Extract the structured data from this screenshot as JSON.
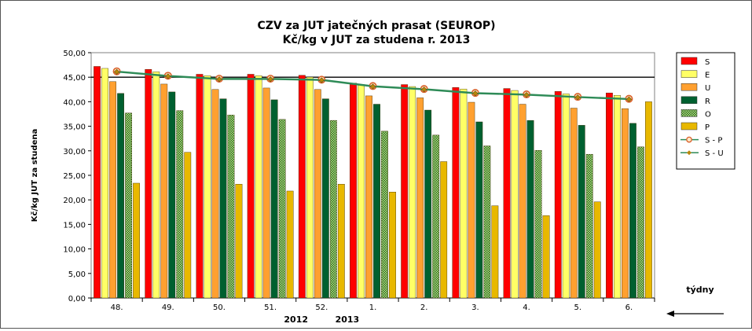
{
  "chart_data": {
    "type": "bar",
    "title_line1": "CZV za JUT jatečných prasat (SEUROP)",
    "title_line2": "Kč/kg v JUT za studena r. 2013",
    "ylabel": "Kč/kg  JUT za studena",
    "xlabel": "týdny",
    "year_labels": [
      {
        "label": "2012",
        "between": [
          "51.",
          "52."
        ]
      },
      {
        "label": "2013",
        "between": [
          "52.",
          "1."
        ]
      }
    ],
    "ylim": [
      0,
      50
    ],
    "ytick_step": 5,
    "ytick_labels": [
      "0,00",
      "5,00",
      "10,00",
      "15,00",
      "20,00",
      "25,00",
      "30,00",
      "35,00",
      "40,00",
      "45,00",
      "50,00"
    ],
    "grid": false,
    "reference_line": 45,
    "legend_position": "right",
    "categories": [
      "48.",
      "49.",
      "50.",
      "51.",
      "52.",
      "1.",
      "2.",
      "3.",
      "4.",
      "5.",
      "6."
    ],
    "bar_series": [
      {
        "name": "S",
        "color": "#ff0000",
        "values": [
          47.2,
          46.6,
          45.6,
          45.6,
          45.4,
          43.8,
          43.5,
          42.9,
          42.7,
          42.1,
          41.8
        ]
      },
      {
        "name": "E",
        "color": "#ffff66",
        "values": [
          46.8,
          46.1,
          45.3,
          45.3,
          45.0,
          43.5,
          43.1,
          42.6,
          42.3,
          41.6,
          41.3
        ]
      },
      {
        "name": "U",
        "color": "#ffa030",
        "values": [
          44.1,
          43.6,
          42.5,
          42.8,
          42.5,
          41.2,
          40.8,
          39.9,
          39.5,
          38.7,
          38.6
        ]
      },
      {
        "name": "R",
        "color": "#006030",
        "values": [
          41.7,
          42.0,
          40.6,
          40.4,
          40.6,
          39.5,
          38.3,
          35.9,
          36.2,
          35.2,
          35.6
        ]
      },
      {
        "name": "O",
        "color": "#66aa33",
        "pattern": "checker",
        "values": [
          37.7,
          38.2,
          37.3,
          36.4,
          36.2,
          34.0,
          33.2,
          31.0,
          30.1,
          29.3,
          30.8
        ]
      },
      {
        "name": "P",
        "color": "#e8b800",
        "values": [
          23.4,
          29.7,
          23.2,
          21.8,
          23.2,
          21.6,
          27.8,
          18.8,
          16.8,
          19.6,
          40.0
        ]
      }
    ],
    "line_series": [
      {
        "name": "S - P",
        "color": "#2e8b57",
        "marker": "circle",
        "marker_color": "#d9602a",
        "values": [
          46.2,
          45.3,
          44.7,
          44.7,
          44.5,
          43.2,
          42.6,
          41.8,
          41.5,
          41.0,
          40.6
        ]
      },
      {
        "name": "S - U",
        "color": "#2e8b57",
        "marker": "diamond",
        "marker_color": "#b8860b",
        "values": [
          46.1,
          45.2,
          44.6,
          44.6,
          44.4,
          43.1,
          42.5,
          41.7,
          41.4,
          40.9,
          40.5
        ]
      }
    ]
  }
}
